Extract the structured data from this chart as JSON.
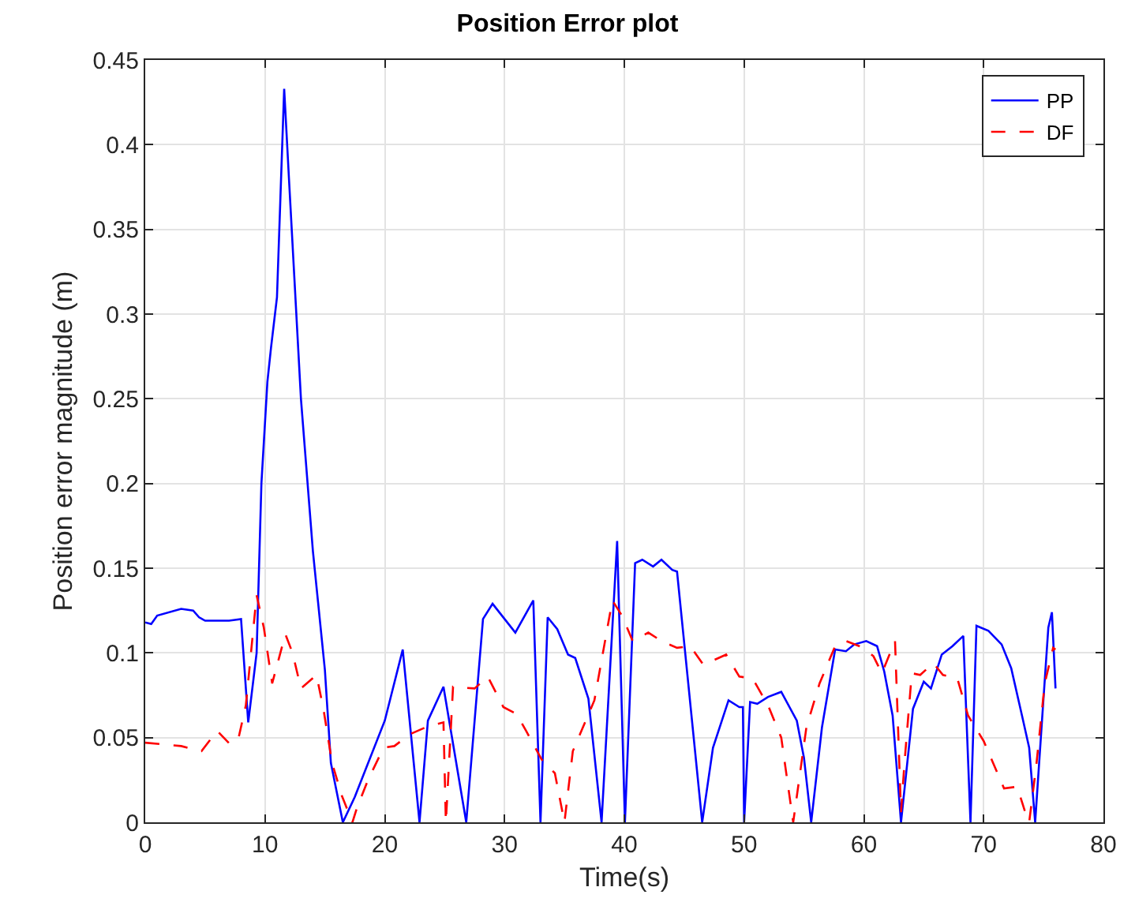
{
  "chart_data": {
    "type": "line",
    "title": "Position Error plot",
    "xlabel": "Time(s)",
    "ylabel": "Position error magnitude (m)",
    "xlim": [
      0,
      80
    ],
    "xticks": [
      0,
      10,
      20,
      30,
      40,
      50,
      60,
      70,
      80
    ],
    "ylim": [
      0,
      0.45
    ],
    "yticks": [
      0,
      0.05,
      0.1,
      0.15,
      0.2,
      0.25,
      0.3,
      0.35,
      0.4,
      0.45
    ],
    "grid": true,
    "legend": "top right",
    "marker": "none",
    "series": [
      {
        "name": "PP",
        "color": "#0000ff",
        "line_style": "solid",
        "x": [
          0,
          0.5,
          1,
          3,
          4,
          4.5,
          5,
          7,
          8,
          8.6,
          9.3,
          9.7,
          10.2,
          10.5,
          11,
          11.6,
          12,
          13,
          14,
          15,
          15.5,
          16.5,
          17.5,
          20,
          21.5,
          22.9,
          23.6,
          24.9,
          26.8,
          28.2,
          29,
          30.9,
          32.4,
          33,
          33.6,
          34.4,
          35.3,
          35.9,
          37,
          38.1,
          39.4,
          40.05,
          40.9,
          41.5,
          42.4,
          43.1,
          44,
          44.4,
          46.5,
          47.4,
          48.7,
          49.6,
          49.9,
          50,
          50.5,
          51.1,
          52,
          53.1,
          54.4,
          55,
          55.6,
          56.5,
          57.6,
          58.5,
          59.2,
          60.2,
          61.1,
          61.7,
          62.4,
          63.1,
          64.1,
          65,
          65.6,
          66.5,
          67.4,
          68.3,
          68.9,
          69.4,
          70.4,
          71.5,
          72.3,
          73.2,
          73.8,
          74.3,
          74.9,
          75.4,
          75.7,
          76
        ],
        "values": [
          0.118,
          0.117,
          0.122,
          0.126,
          0.125,
          0.121,
          0.119,
          0.119,
          0.12,
          0.059,
          0.1,
          0.2,
          0.26,
          0.28,
          0.31,
          0.433,
          0.38,
          0.25,
          0.16,
          0.09,
          0.035,
          0,
          0.015,
          0.06,
          0.102,
          0,
          0.06,
          0.08,
          0,
          0.12,
          0.129,
          0.112,
          0.131,
          0,
          0.121,
          0.114,
          0.099,
          0.097,
          0.073,
          0,
          0.166,
          0,
          0.153,
          0.155,
          0.151,
          0.155,
          0.149,
          0.148,
          0,
          0.044,
          0.072,
          0.068,
          0.068,
          0,
          0.071,
          0.07,
          0.074,
          0.077,
          0.06,
          0.038,
          0,
          0.056,
          0.102,
          0.101,
          0.105,
          0.107,
          0.104,
          0.089,
          0.063,
          0,
          0.067,
          0.083,
          0.079,
          0.099,
          0.104,
          0.11,
          0,
          0.116,
          0.113,
          0.105,
          0.091,
          0.063,
          0.044,
          0,
          0.063,
          0.115,
          0.124,
          0.079
        ]
      },
      {
        "name": "DF",
        "color": "#ff0000",
        "line_style": "dashed",
        "x": [
          0,
          3,
          4.7,
          6,
          7.1,
          7.8,
          8.4,
          9.3,
          9.9,
          10.6,
          11.7,
          12.3,
          13,
          14.3,
          14.9,
          15.6,
          16.4,
          17.3,
          17.7,
          18.6,
          19.9,
          20.8,
          22.1,
          23.4,
          24.9,
          25.1,
          25.7,
          27.5,
          28.6,
          29.9,
          31,
          31.8,
          33.1,
          34.2,
          35,
          35.7,
          37.5,
          39,
          39.8,
          40.7,
          42,
          43.1,
          44.4,
          45.5,
          46.6,
          48.5,
          49.6,
          50.7,
          52,
          53.1,
          54.1,
          55.2,
          56.3,
          57.6,
          58.5,
          60,
          60.8,
          61.5,
          62.6,
          63.1,
          63.4,
          64,
          64.7,
          65.8,
          66.6,
          67.8,
          68.7,
          70,
          71.7,
          72.8,
          73.6,
          73.8,
          74.4,
          75.1,
          75.8,
          76
        ],
        "values": [
          0.047,
          0.045,
          0.042,
          0.054,
          0.046,
          0.05,
          0.069,
          0.134,
          0.115,
          0.082,
          0.111,
          0.1,
          0.079,
          0.087,
          0.066,
          0.035,
          0.016,
          0,
          0.009,
          0.025,
          0.044,
          0.045,
          0.052,
          0.056,
          0.059,
          0,
          0.08,
          0.079,
          0.086,
          0.068,
          0.064,
          0.054,
          0.037,
          0.029,
          0,
          0.042,
          0.072,
          0.131,
          0.122,
          0.107,
          0.112,
          0.107,
          0.103,
          0.104,
          0.093,
          0.099,
          0.086,
          0.085,
          0.069,
          0.05,
          0,
          0.056,
          0.082,
          0.104,
          0.107,
          0.103,
          0.098,
          0.088,
          0.107,
          0.006,
          0.036,
          0.088,
          0.087,
          0.094,
          0.087,
          0.085,
          0.063,
          0.048,
          0.02,
          0.021,
          0.003,
          0,
          0.034,
          0.082,
          0.103,
          0.102
        ]
      }
    ]
  }
}
